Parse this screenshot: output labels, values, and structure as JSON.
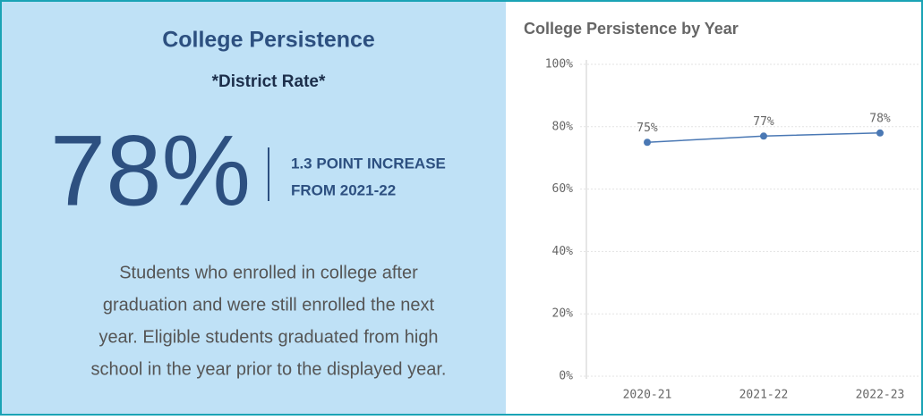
{
  "kpi": {
    "title": "College Persistence",
    "subtitle": "*District Rate*",
    "value": "78%",
    "change_lines": [
      "1.3 POINT INCREASE",
      "FROM 2021-22"
    ],
    "description_lines": [
      "Students who enrolled in college after",
      "graduation and were still enrolled the next",
      "year. Eligible students graduated from high",
      "school in the year prior to the displayed year."
    ]
  },
  "chart_data": {
    "type": "line",
    "title": "College Persistence by Year",
    "categories": [
      "2020-21",
      "2021-22",
      "2022-23"
    ],
    "series": [
      {
        "name": "College Persistence",
        "color": "#4a78b4",
        "values": [
          75,
          77,
          78
        ],
        "value_labels": [
          "75%",
          "77%",
          "78%"
        ]
      }
    ],
    "ylim": [
      0,
      100
    ],
    "yticks": [
      {
        "value": 0,
        "label": "0%"
      },
      {
        "value": 20,
        "label": "20%"
      },
      {
        "value": 40,
        "label": "40%"
      },
      {
        "value": 60,
        "label": "60%"
      },
      {
        "value": 80,
        "label": "80%"
      },
      {
        "value": 100,
        "label": "100%"
      }
    ],
    "grid": true
  }
}
